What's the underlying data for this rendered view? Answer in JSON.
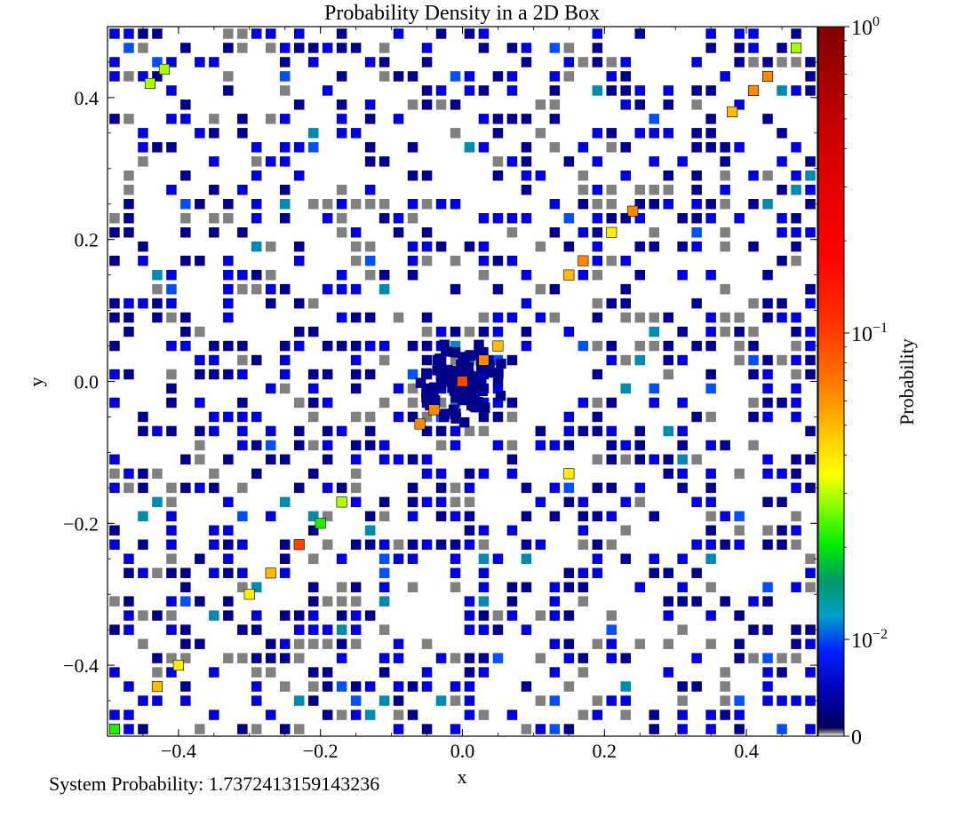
{
  "footer": {
    "label": "System Probability:",
    "value": "1.7372413159143236"
  },
  "chart_data": {
    "type": "heatmap",
    "title": "Probability Density in a 2D Box",
    "xlabel": "x",
    "ylabel": "y",
    "xlim": [
      -0.5,
      0.5
    ],
    "ylim": [
      -0.5,
      0.5
    ],
    "grid": false,
    "xticks": [
      "−0.4",
      "−0.2",
      "0.0",
      "0.2",
      "0.4"
    ],
    "xtick_values": [
      -0.4,
      -0.2,
      0.0,
      0.2,
      0.4
    ],
    "yticks": [
      "−0.4",
      "−0.2",
      "0.0",
      "0.2",
      "0.4"
    ],
    "ytick_values": [
      -0.4,
      -0.2,
      0.0,
      0.2,
      0.4
    ],
    "bins_per_axis": 50,
    "colorbar": {
      "label": "Probability",
      "scale": "symlog",
      "range": [
        0,
        1
      ],
      "ticks": [
        {
          "base": "10",
          "exp": "0",
          "value": 1
        },
        {
          "base": "10",
          "exp": "−1",
          "value": 0.1
        },
        {
          "base": "10",
          "exp": "−2",
          "value": 0.01
        },
        {
          "base": "0",
          "exp": "",
          "value": 0
        }
      ]
    },
    "highlighted_cells": [
      {
        "x": 0.0,
        "y": 0.0,
        "p": 0.1
      },
      {
        "x": -0.06,
        "y": -0.06,
        "p": 0.08
      },
      {
        "x": 0.05,
        "y": 0.05,
        "p": 0.06
      },
      {
        "x": -0.04,
        "y": -0.04,
        "p": 0.09
      },
      {
        "x": 0.03,
        "y": 0.03,
        "p": 0.08
      },
      {
        "x": 0.43,
        "y": 0.43,
        "p": 0.09
      },
      {
        "x": 0.41,
        "y": 0.41,
        "p": 0.07
      },
      {
        "x": 0.38,
        "y": 0.38,
        "p": 0.06
      },
      {
        "x": 0.24,
        "y": 0.24,
        "p": 0.08
      },
      {
        "x": 0.17,
        "y": 0.17,
        "p": 0.07
      },
      {
        "x": 0.15,
        "y": 0.15,
        "p": 0.06
      },
      {
        "x": -0.23,
        "y": -0.23,
        "p": 0.11
      },
      {
        "x": -0.27,
        "y": -0.27,
        "p": 0.06
      },
      {
        "x": -0.43,
        "y": -0.43,
        "p": 0.05
      },
      {
        "x": -0.4,
        "y": -0.4,
        "p": 0.04
      },
      {
        "x": -0.3,
        "y": -0.3,
        "p": 0.04
      },
      {
        "x": 0.21,
        "y": 0.21,
        "p": 0.04
      },
      {
        "x": 0.47,
        "y": 0.47,
        "p": 0.03
      },
      {
        "x": -0.44,
        "y": 0.42,
        "p": 0.03
      },
      {
        "x": -0.42,
        "y": 0.44,
        "p": 0.03
      },
      {
        "x": -0.49,
        "y": -0.49,
        "p": 0.025
      },
      {
        "x": 0.15,
        "y": -0.13,
        "p": 0.04
      },
      {
        "x": -0.17,
        "y": -0.17,
        "p": 0.03
      },
      {
        "x": -0.2,
        "y": -0.2,
        "p": 0.025
      }
    ]
  }
}
